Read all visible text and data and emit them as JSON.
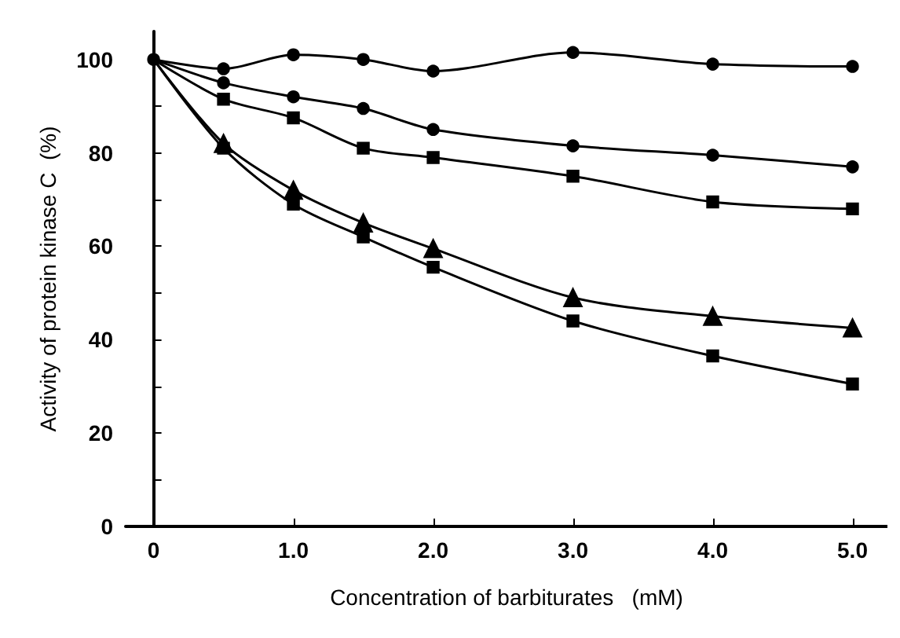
{
  "chart_data": {
    "type": "line",
    "xlabel": "Concentration of barbiturates   (mM)",
    "ylabel": "Activity of protein kinase C  (%)",
    "x": [
      0,
      0.5,
      1,
      1.5,
      2,
      3,
      4,
      5
    ],
    "xlim": [
      -0.2,
      5.25
    ],
    "xticks": [
      {
        "value": 0,
        "label": "0"
      },
      {
        "value": 1,
        "label": "1.0"
      },
      {
        "value": 2,
        "label": "2.0"
      },
      {
        "value": 3,
        "label": "3.0"
      },
      {
        "value": 4,
        "label": "4.0"
      },
      {
        "value": 5,
        "label": "5.0"
      }
    ],
    "ylim": [
      0,
      106
    ],
    "yticks": [
      0,
      {
        "value": 10,
        "label": null
      },
      20,
      {
        "value": 30,
        "label": null
      },
      40,
      {
        "value": 50,
        "label": null
      },
      60,
      {
        "value": 70,
        "label": null
      },
      80,
      {
        "value": 90,
        "label": null
      },
      100
    ],
    "grid": false,
    "line_style": "solid",
    "series": [
      {
        "color": "#000000",
        "marker": "circle",
        "values": [
          100,
          98,
          101,
          100,
          97.5,
          101.5,
          99,
          98.5
        ]
      },
      {
        "color": "#000000",
        "marker": "triangle",
        "values": [
          100,
          82,
          72,
          65,
          59.5,
          49,
          45,
          42.5
        ]
      },
      {
        "color": "#000000",
        "marker": "square",
        "values": [
          100,
          81,
          69,
          62,
          55.5,
          44,
          36.5,
          30.5
        ]
      },
      {
        "color": "#000000",
        "marker": "square",
        "values": [
          100,
          91.5,
          87.5,
          81,
          79,
          75,
          69.5,
          68
        ]
      },
      {
        "color": "#000000",
        "marker": "circle",
        "values": [
          100,
          95,
          92,
          89.5,
          85,
          81.5,
          79.5,
          77
        ]
      }
    ]
  }
}
